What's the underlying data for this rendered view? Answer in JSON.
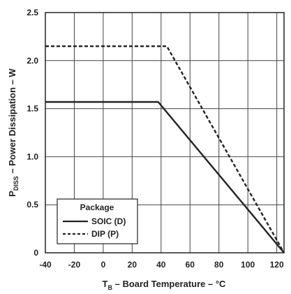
{
  "chart_data": {
    "type": "line",
    "xlabel": {
      "main": "T",
      "sub": "B",
      "rest": " – Board Temperature – °C"
    },
    "ylabel": {
      "main": "P",
      "sub": "DISS",
      "rest": " – Power Dissipation – W"
    },
    "xlim": [
      -40,
      125
    ],
    "ylim": [
      0,
      2.5
    ],
    "xticks": [
      -40,
      -20,
      0,
      20,
      40,
      60,
      80,
      100,
      120
    ],
    "yticks": [
      0,
      0.5,
      1.0,
      1.5,
      2.0,
      2.5
    ],
    "ytick_labels": [
      "0",
      "0.5",
      "1.0",
      "1.5",
      "2.0",
      "2.5"
    ],
    "grid": true,
    "legend": {
      "title": "Package",
      "placement": "bottom-left"
    },
    "series": [
      {
        "name": "SOIC (D)",
        "style": "solid",
        "color": "#222222",
        "points": [
          [
            -40,
            1.57
          ],
          [
            38,
            1.57
          ],
          [
            125,
            0
          ]
        ]
      },
      {
        "name": "DIP (P)",
        "style": "dashed",
        "color": "#222222",
        "points": [
          [
            -40,
            2.15
          ],
          [
            44,
            2.15
          ],
          [
            125,
            0
          ]
        ]
      }
    ]
  }
}
